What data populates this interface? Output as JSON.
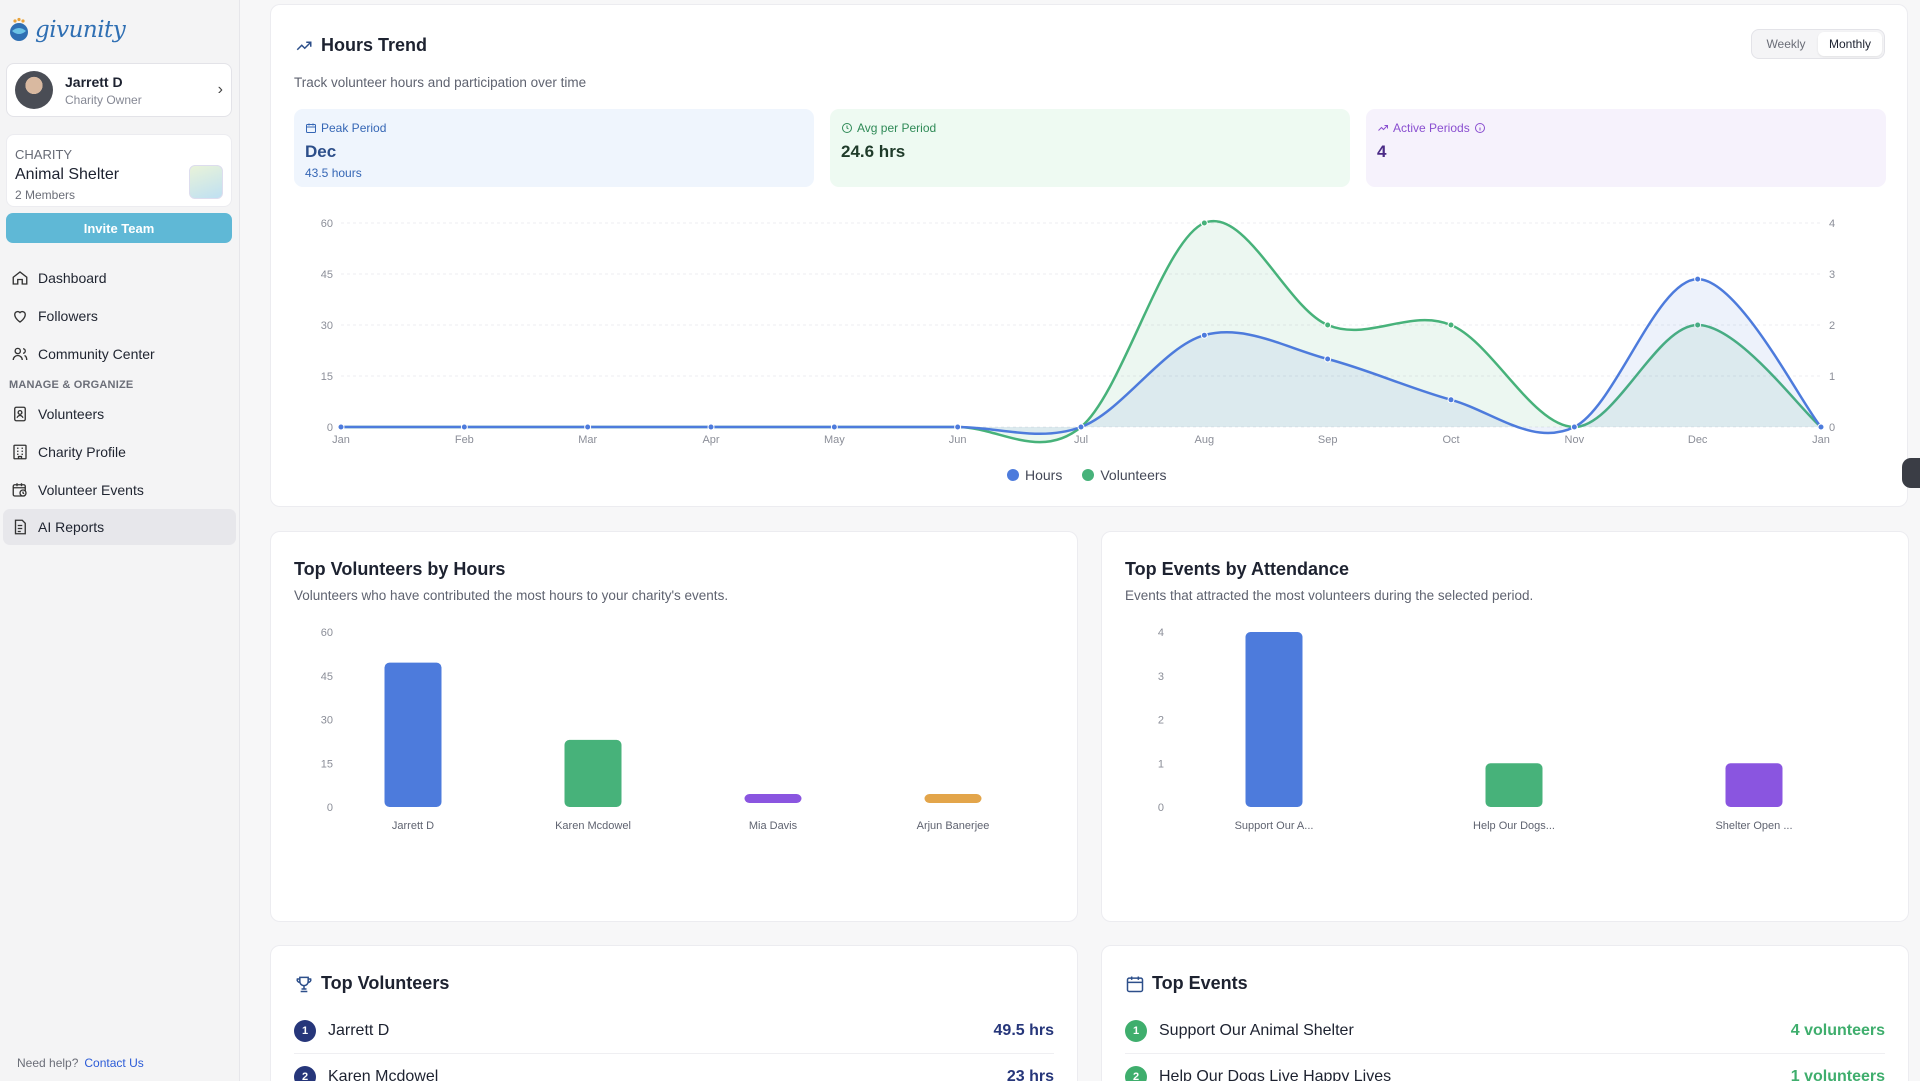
{
  "brand": {
    "name": "givunity"
  },
  "user": {
    "name": "Jarrett D",
    "role": "Charity Owner"
  },
  "charity": {
    "label": "CHARITY",
    "name": "Animal Shelter",
    "members": "2 Members",
    "logo_text": "ANIMAL SHELTER"
  },
  "sidebar": {
    "invite_label": "Invite Team",
    "items": [
      {
        "label": "Dashboard",
        "icon": "home-icon"
      },
      {
        "label": "Followers",
        "icon": "heart-icon"
      },
      {
        "label": "Community Center",
        "icon": "users-icon"
      },
      {
        "label": "Volunteers",
        "icon": "badge-icon"
      },
      {
        "label": "Charity Profile",
        "icon": "building-icon"
      },
      {
        "label": "Volunteer Events",
        "icon": "calendar-clock-icon"
      },
      {
        "label": "AI Reports",
        "icon": "report-icon"
      }
    ],
    "section_label": "MANAGE & ORGANIZE",
    "help_text": "Need help?",
    "help_link": "Contact Us"
  },
  "trend": {
    "title": "Hours Trend",
    "subtitle": "Track volunteer hours and participation over time",
    "toggle": {
      "weekly": "Weekly",
      "monthly": "Monthly",
      "selected": "Monthly"
    },
    "stats": {
      "peak": {
        "label": "Peak Period",
        "value": "Dec",
        "note": "43.5 hours"
      },
      "avg": {
        "label": "Avg per Period",
        "value": "24.6 hrs"
      },
      "active": {
        "label": "Active Periods",
        "value": "4"
      }
    },
    "legend": {
      "hours": "Hours",
      "volunteers": "Volunteers"
    }
  },
  "colors": {
    "hours": "#4d7bdc",
    "volunteers": "#47b27a",
    "purple": "#8a55e0",
    "orange": "#e3a54a"
  },
  "chart_data": [
    {
      "type": "area",
      "categories": [
        "Jan",
        "Feb",
        "Mar",
        "Apr",
        "May",
        "Jun",
        "Jul",
        "Aug",
        "Sep",
        "Oct",
        "Nov",
        "Dec",
        "Jan"
      ],
      "series": [
        {
          "name": "Hours",
          "axis": "left",
          "values": [
            0,
            0,
            0,
            0,
            0,
            0,
            0,
            27,
            20,
            8,
            0,
            43.5,
            0
          ]
        },
        {
          "name": "Volunteers",
          "axis": "right",
          "values": [
            0,
            0,
            0,
            0,
            0,
            0,
            0,
            4,
            2,
            2,
            0,
            2,
            0
          ]
        }
      ],
      "ylim_left": [
        0,
        60
      ],
      "yticks_left": [
        0,
        15,
        30,
        45,
        60
      ],
      "ylim_right": [
        0,
        4
      ],
      "yticks_right": [
        0,
        1,
        2,
        3,
        4
      ],
      "grid": true,
      "legend": "bottom-center"
    },
    {
      "type": "bar",
      "title": "Top Volunteers by Hours",
      "subtitle": "Volunteers who have contributed the most hours to your charity's events.",
      "categories": [
        "Jarrett D",
        "Karen Mcdowel",
        "Mia Davis",
        "Arjun Banerjee"
      ],
      "values": [
        49.5,
        23,
        0,
        0
      ],
      "ylim": [
        0,
        60
      ],
      "yticks": [
        0,
        15,
        30,
        45,
        60
      ]
    },
    {
      "type": "bar",
      "title": "Top Events by Attendance",
      "subtitle": "Events that attracted the most volunteers during the selected period.",
      "categories": [
        "Support Our A...",
        "Help Our Dogs...",
        "Shelter Open ..."
      ],
      "values": [
        4,
        1,
        1
      ],
      "ylim": [
        0,
        4
      ],
      "yticks": [
        0,
        1,
        2,
        3,
        4
      ]
    }
  ],
  "top_volunteers": {
    "title": "Top Volunteers",
    "rows": [
      {
        "rank": "1",
        "name": "Jarrett D",
        "value": "49.5 hrs"
      },
      {
        "rank": "2",
        "name": "Karen Mcdowel",
        "value": "23 hrs"
      }
    ]
  },
  "top_events": {
    "title": "Top Events",
    "rows": [
      {
        "rank": "1",
        "name": "Support Our Animal Shelter",
        "value": "4 volunteers"
      },
      {
        "rank": "2",
        "name": "Help Our Dogs Live Happy Lives",
        "value": "1 volunteers"
      }
    ]
  }
}
